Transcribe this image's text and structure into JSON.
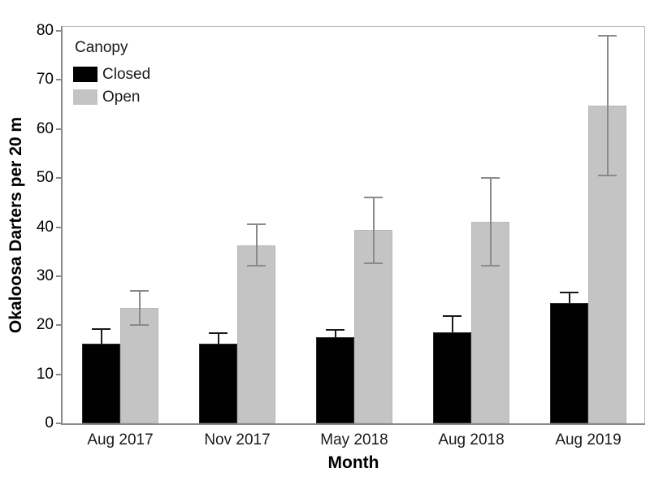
{
  "chart_data": {
    "type": "bar",
    "title": "",
    "xlabel": "Month",
    "ylabel": "Okaloosa Darters per 20 m",
    "ylim": [
      0,
      80
    ],
    "yticks": [
      0,
      10,
      20,
      30,
      40,
      50,
      60,
      70,
      80
    ],
    "grid": false,
    "legend": {
      "title": "Canopy",
      "position": "top-left-inside"
    },
    "categories": [
      "Aug 2017",
      "Nov 2017",
      "May 2018",
      "Aug 2018",
      "Aug 2019"
    ],
    "series": [
      {
        "name": "Closed",
        "color": "#000000",
        "error_color": "#1a1a1a",
        "values": [
          16.3,
          16.3,
          17.5,
          18.5,
          24.5
        ],
        "error_low": [
          null,
          null,
          null,
          null,
          null
        ],
        "error_high": [
          19.2,
          18.4,
          19.0,
          21.8,
          26.7
        ]
      },
      {
        "name": "Open",
        "color": "#c4c4c4",
        "error_color": "#8a8a8a",
        "values": [
          23.5,
          36.3,
          39.4,
          41.1,
          64.8
        ],
        "error_low": [
          20.0,
          32.2,
          32.7,
          32.1,
          50.5
        ],
        "error_high": [
          27.0,
          40.5,
          46.0,
          50.0,
          79.0
        ]
      }
    ],
    "colors": {
      "axis": "#8a8a8a",
      "frame_light": "#b5b5b5",
      "text": "#000000",
      "background": "#ffffff"
    }
  }
}
